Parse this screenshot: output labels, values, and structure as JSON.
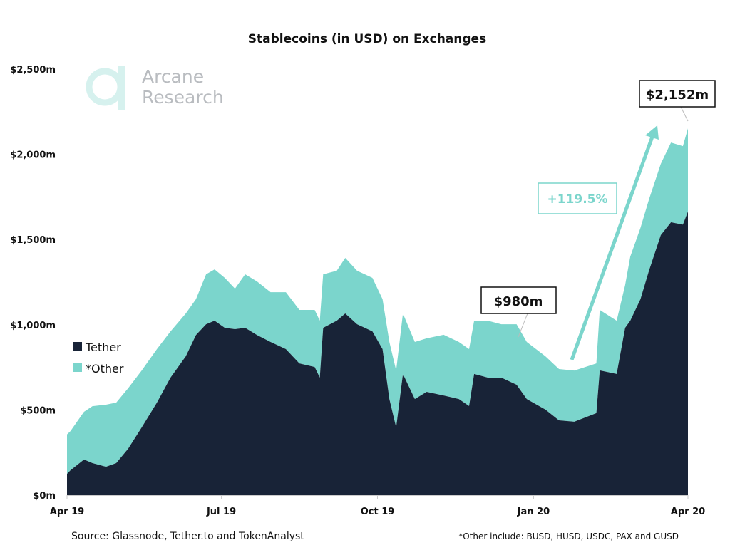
{
  "chart_data": {
    "type": "area",
    "stacked": true,
    "title": "Stablecoins (in USD) on Exchanges",
    "xlabel": "",
    "ylabel": "",
    "ylim": [
      0,
      2500
    ],
    "xlim": [
      "2019-04-01",
      "2020-04-01"
    ],
    "yticks": [
      "$0m",
      "$500m",
      "$1,000m",
      "$1,500m",
      "$2,000m",
      "$2,500m"
    ],
    "ytick_values": [
      0,
      500,
      1000,
      1500,
      2000,
      2500
    ],
    "xticks": [
      "Apr 19",
      "Jul 19",
      "Oct 19",
      "Jan 20",
      "Apr 20"
    ],
    "xtick_values": [
      "2019-04-01",
      "2019-07-01",
      "2019-10-01",
      "2020-01-01",
      "2020-04-01"
    ],
    "grid": false,
    "legend_position": "left",
    "x": [
      "2019-04-01",
      "2019-04-03",
      "2019-04-11",
      "2019-04-16",
      "2019-04-24",
      "2019-04-30",
      "2019-05-07",
      "2019-05-15",
      "2019-05-24",
      "2019-06-01",
      "2019-06-10",
      "2019-06-16",
      "2019-06-22",
      "2019-06-27",
      "2019-07-03",
      "2019-07-09",
      "2019-07-15",
      "2019-07-22",
      "2019-07-30",
      "2019-08-08",
      "2019-08-16",
      "2019-08-25",
      "2019-08-28",
      "2019-08-30",
      "2019-09-07",
      "2019-09-12",
      "2019-09-19",
      "2019-09-28",
      "2019-10-04",
      "2019-10-08",
      "2019-10-12",
      "2019-10-16",
      "2019-10-23",
      "2019-10-30",
      "2019-11-09",
      "2019-11-18",
      "2019-11-24",
      "2019-11-27",
      "2019-12-05",
      "2019-12-13",
      "2019-12-22",
      "2019-12-28",
      "2020-01-08",
      "2020-01-16",
      "2020-01-25",
      "2020-02-07",
      "2020-02-09",
      "2020-02-19",
      "2020-02-24",
      "2020-02-27",
      "2020-03-04",
      "2020-03-09",
      "2020-03-16",
      "2020-03-22",
      "2020-03-29",
      "2020-04-01"
    ],
    "series": [
      {
        "name": "Tether",
        "color": "#182337",
        "values": [
          125,
          146,
          209,
          188,
          167,
          188,
          272,
          397,
          543,
          690,
          815,
          940,
          1003,
          1024,
          982,
          974,
          982,
          940,
          899,
          857,
          773,
          752,
          690,
          982,
          1024,
          1066,
          1003,
          961,
          857,
          564,
          397,
          711,
          564,
          606,
          585,
          564,
          523,
          711,
          690,
          690,
          648,
          564,
          502,
          439,
          431,
          481,
          732,
          711,
          982,
          1024,
          1150,
          1317,
          1526,
          1601,
          1588,
          1664
        ]
      },
      {
        "name": "*Other",
        "color": "#7bd5cc",
        "values": [
          231,
          230,
          280,
          334,
          364,
          355,
          355,
          334,
          314,
          271,
          251,
          210,
          293,
          301,
          293,
          238,
          314,
          314,
          292,
          334,
          314,
          335,
          334,
          314,
          293,
          326,
          314,
          314,
          293,
          335,
          334,
          355,
          335,
          314,
          356,
          335,
          334,
          313,
          334,
          313,
          355,
          335,
          313,
          301,
          300,
          292,
          355,
          313,
          251,
          376,
          418,
          418,
          418,
          468,
          460,
          488
        ]
      }
    ],
    "annotations": {
      "low_label": "$980m",
      "high_label": "$2,152m",
      "change_label": "+119.5%"
    }
  },
  "branding": {
    "logo_line1": "Arcane",
    "logo_line2": "Research"
  },
  "footer": {
    "source": "Source: Glassnode, Tether.to and TokenAnalyst",
    "note": "*Other include: BUSD, HUSD, USDC, PAX and GUSD"
  }
}
